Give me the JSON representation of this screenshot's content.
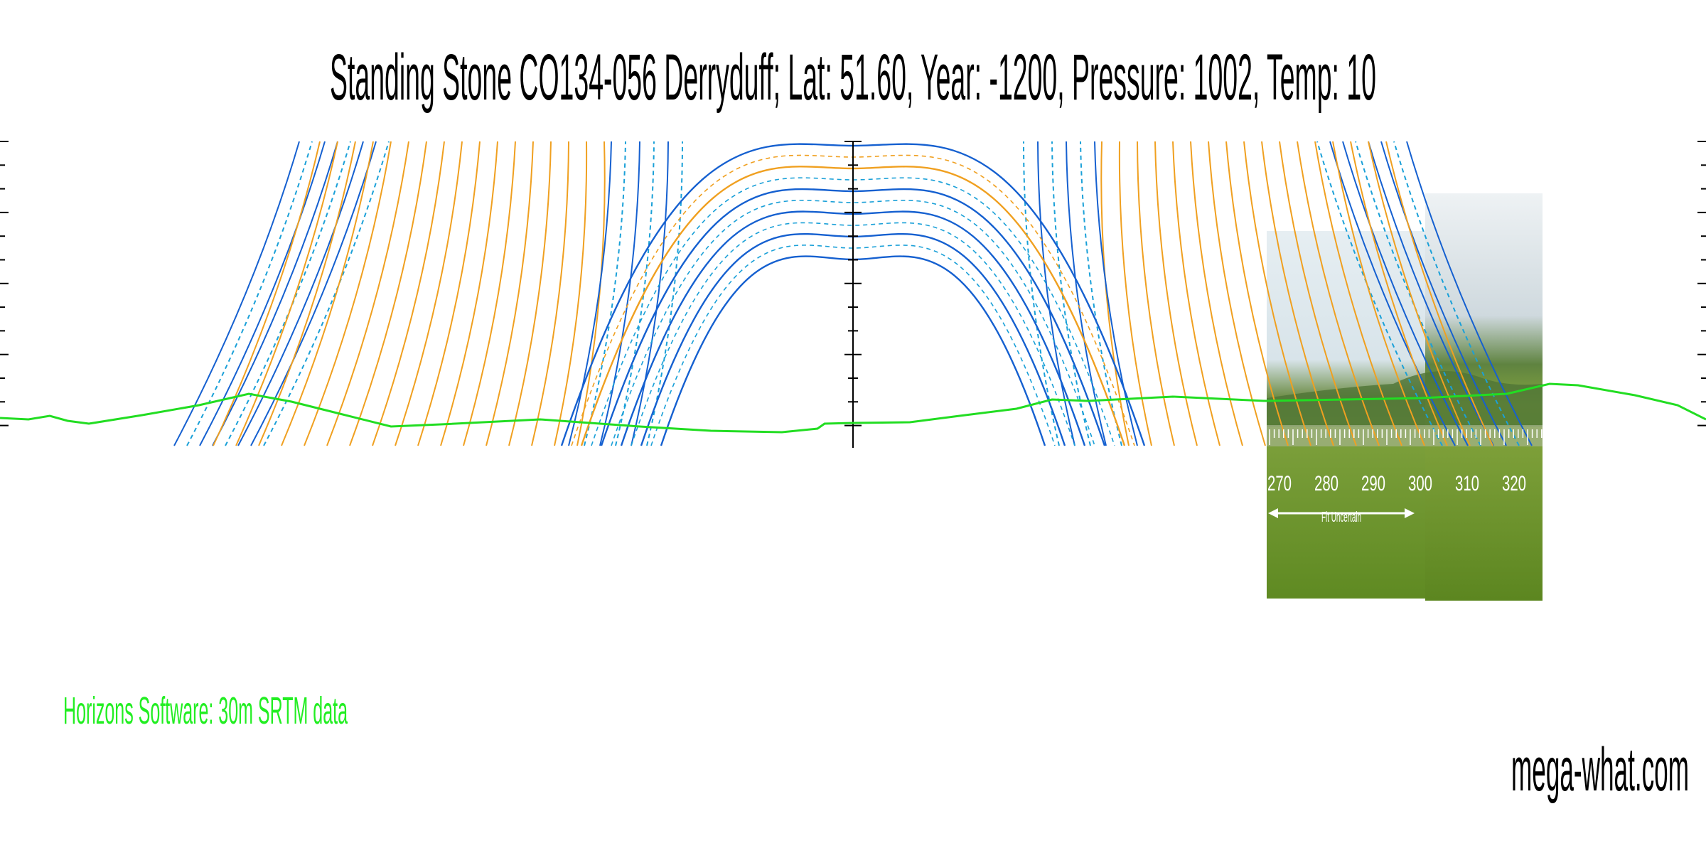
{
  "header": {
    "title": "Standing Stone CO134-056 Derryduff; Lat: 51.60, Year: -1200, Pressure: 1002, Temp: 10"
  },
  "photo": {
    "scale_labels": [
      "270",
      "280",
      "290",
      "300",
      "310",
      "320"
    ],
    "fit_note": "Fit Uncertain"
  },
  "footer": {
    "source": "Horizons Software: 30m SRTM data",
    "site": "mega-what.com"
  }
}
